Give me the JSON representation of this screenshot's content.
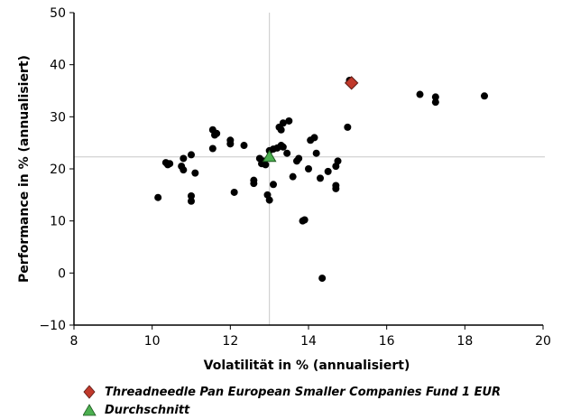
{
  "chart_data": {
    "type": "scatter",
    "xlabel": "Volatilität in % (annualisiert)",
    "ylabel": "Performance in % (annualisiert)",
    "xlim": [
      8,
      20
    ],
    "ylim": [
      -10,
      50
    ],
    "xticks": [
      8,
      10,
      12,
      14,
      16,
      18,
      20
    ],
    "yticks": [
      -10,
      0,
      10,
      20,
      30,
      40,
      50
    ],
    "xtick_labels": [
      "8",
      "10",
      "12",
      "14",
      "16",
      "18",
      "20"
    ],
    "ytick_labels": [
      "−10",
      "0",
      "10",
      "20",
      "30",
      "40",
      "50"
    ],
    "grid": false,
    "crosshair": {
      "x": 13.0,
      "y": 22.3
    },
    "legend_position": "bottom-left",
    "series": [
      {
        "marker": "circle",
        "color": "#000000",
        "points": [
          [
            10.15,
            14.5
          ],
          [
            10.35,
            21.2
          ],
          [
            10.4,
            20.8
          ],
          [
            10.45,
            21.0
          ],
          [
            10.8,
            22.0
          ],
          [
            10.75,
            20.5
          ],
          [
            10.8,
            19.8
          ],
          [
            11.0,
            22.7
          ],
          [
            11.0,
            14.8
          ],
          [
            11.0,
            13.8
          ],
          [
            11.1,
            19.2
          ],
          [
            11.55,
            27.5
          ],
          [
            11.55,
            23.9
          ],
          [
            11.6,
            26.5
          ],
          [
            11.65,
            26.8
          ],
          [
            12.0,
            25.5
          ],
          [
            12.0,
            24.8
          ],
          [
            12.1,
            15.5
          ],
          [
            12.35,
            24.5
          ],
          [
            12.6,
            17.8
          ],
          [
            12.6,
            17.2
          ],
          [
            12.75,
            22.0
          ],
          [
            12.8,
            21.0
          ],
          [
            12.85,
            21.5
          ],
          [
            12.9,
            20.8
          ],
          [
            12.95,
            15.0
          ],
          [
            13.0,
            14.0
          ],
          [
            13.0,
            23.5
          ],
          [
            13.1,
            23.8
          ],
          [
            13.1,
            17.0
          ],
          [
            13.2,
            24.0
          ],
          [
            13.25,
            28.0
          ],
          [
            13.3,
            27.5
          ],
          [
            13.3,
            24.5
          ],
          [
            13.35,
            24.2
          ],
          [
            13.35,
            28.8
          ],
          [
            13.5,
            29.2
          ],
          [
            13.45,
            23.0
          ],
          [
            13.6,
            18.5
          ],
          [
            13.7,
            21.5
          ],
          [
            13.75,
            22.0
          ],
          [
            13.85,
            10.0
          ],
          [
            13.9,
            10.2
          ],
          [
            14.0,
            20.0
          ],
          [
            14.05,
            25.5
          ],
          [
            14.15,
            26.0
          ],
          [
            14.2,
            23.0
          ],
          [
            14.3,
            18.2
          ],
          [
            14.35,
            -1.0
          ],
          [
            14.5,
            19.5
          ],
          [
            14.7,
            20.5
          ],
          [
            14.7,
            16.2
          ],
          [
            14.7,
            16.8
          ],
          [
            14.75,
            21.5
          ],
          [
            15.0,
            28.0
          ],
          [
            15.05,
            37.0
          ],
          [
            16.85,
            34.3
          ],
          [
            17.25,
            33.8
          ],
          [
            17.25,
            32.8
          ],
          [
            18.5,
            34.0
          ]
        ]
      },
      {
        "name": "Threadneedle Pan European Smaller Companies Fund 1 EUR",
        "marker": "diamond",
        "color": "#c0392b",
        "points": [
          [
            15.1,
            36.5
          ]
        ]
      },
      {
        "name": "Durchschnitt",
        "marker": "triangle",
        "color": "#4caf50",
        "points": [
          [
            13.0,
            22.3
          ]
        ]
      }
    ]
  },
  "legend": [
    {
      "label": "Threadneedle Pan European Smaller Companies Fund 1 EUR",
      "icon": "diamond-icon",
      "color": "#c0392b"
    },
    {
      "label": "Durchschnitt",
      "icon": "triangle-icon",
      "color": "#4caf50"
    }
  ]
}
